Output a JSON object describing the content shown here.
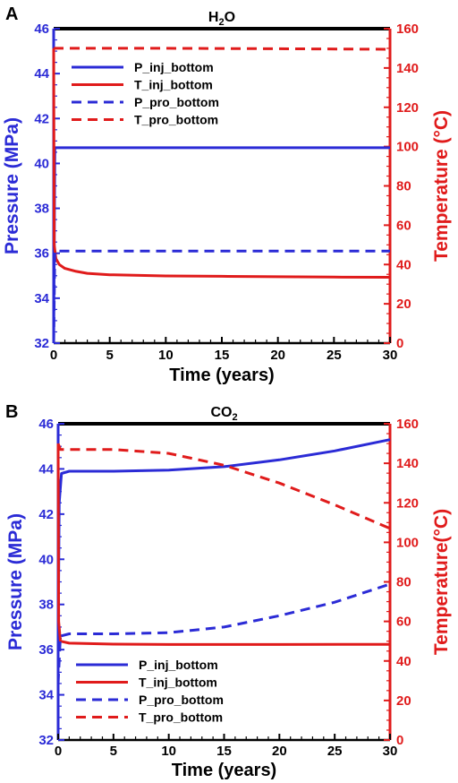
{
  "colors": {
    "blue": "#2b2bd6",
    "red": "#e01b1b",
    "frame": "#000000"
  },
  "chart_data": [
    {
      "type": "line",
      "panel_label": "A",
      "title": "H",
      "title_sub": "2",
      "title_tail": "O",
      "xlabel": "Time (years)",
      "ylabel_left": "Pressure (MPa)",
      "ylabel_right": "Temperature (°C)",
      "xlim": [
        0,
        30
      ],
      "ylim_left": [
        32,
        46
      ],
      "ylim_right": [
        0,
        160
      ],
      "x_ticks": [
        "0",
        "5",
        "10",
        "15",
        "20",
        "25",
        "30"
      ],
      "y_left_ticks": [
        "32",
        "34",
        "36",
        "38",
        "40",
        "42",
        "44",
        "46"
      ],
      "y_right_ticks": [
        "0",
        "20",
        "40",
        "60",
        "80",
        "100",
        "120",
        "140",
        "160"
      ],
      "legend_position": "top-left",
      "grid": false,
      "series": [
        {
          "name": "P_inj_bottom",
          "axis": "left",
          "dash": false,
          "color": "#2b2bd6",
          "points": [
            [
              0,
              32.0
            ],
            [
              0.1,
              40.7
            ],
            [
              30,
              40.7
            ]
          ]
        },
        {
          "name": "T_inj_bottom",
          "axis": "right",
          "dash": false,
          "color": "#e01b1b",
          "points": [
            [
              0,
              150
            ],
            [
              0.05,
              50
            ],
            [
              0.2,
              43
            ],
            [
              0.5,
              40
            ],
            [
              1,
              38
            ],
            [
              2,
              36.5
            ],
            [
              3,
              35.5
            ],
            [
              5,
              34.8
            ],
            [
              10,
              34.2
            ],
            [
              15,
              34.0
            ],
            [
              20,
              33.8
            ],
            [
              25,
              33.6
            ],
            [
              30,
              33.5
            ]
          ]
        },
        {
          "name": "P_pro_bottom",
          "axis": "left",
          "dash": true,
          "color": "#2b2bd6",
          "points": [
            [
              0,
              32.0
            ],
            [
              0.1,
              36.1
            ],
            [
              30,
              36.1
            ]
          ]
        },
        {
          "name": "T_pro_bottom",
          "axis": "right",
          "dash": true,
          "color": "#e01b1b",
          "points": [
            [
              0,
              150
            ],
            [
              10,
              150
            ],
            [
              20,
              149.8
            ],
            [
              30,
              149.5
            ]
          ]
        }
      ]
    },
    {
      "type": "line",
      "panel_label": "B",
      "title": "CO",
      "title_sub": "2",
      "title_tail": "",
      "xlabel": "Time (years)",
      "ylabel_left": "Pressure (MPa)",
      "ylabel_right": "Temperature(°C)",
      "xlim": [
        0,
        30
      ],
      "ylim_left": [
        32,
        46
      ],
      "ylim_right": [
        0,
        160
      ],
      "x_ticks": [
        "0",
        "5",
        "10",
        "15",
        "20",
        "25",
        "30"
      ],
      "y_left_ticks": [
        "32",
        "34",
        "36",
        "38",
        "40",
        "42",
        "44",
        "46"
      ],
      "y_right_ticks": [
        "0",
        "20",
        "40",
        "60",
        "80",
        "100",
        "120",
        "140",
        "160"
      ],
      "legend_position": "bottom-left",
      "grid": false,
      "series": [
        {
          "name": "P_inj_bottom",
          "axis": "left",
          "dash": false,
          "color": "#2b2bd6",
          "points": [
            [
              0,
              36.0
            ],
            [
              0.1,
              42.5
            ],
            [
              0.3,
              43.8
            ],
            [
              1,
              43.9
            ],
            [
              5,
              43.9
            ],
            [
              10,
              43.95
            ],
            [
              15,
              44.1
            ],
            [
              20,
              44.4
            ],
            [
              25,
              44.8
            ],
            [
              30,
              45.3
            ]
          ]
        },
        {
          "name": "T_inj_bottom",
          "axis": "right",
          "dash": false,
          "color": "#e01b1b",
          "points": [
            [
              0,
              150
            ],
            [
              0.05,
              60
            ],
            [
              0.2,
              50
            ],
            [
              1,
              49
            ],
            [
              5,
              48.5
            ],
            [
              10,
              48.3
            ],
            [
              20,
              48.3
            ],
            [
              30,
              48.4
            ]
          ]
        },
        {
          "name": "P_pro_bottom",
          "axis": "left",
          "dash": true,
          "color": "#2b2bd6",
          "points": [
            [
              0,
              34.5
            ],
            [
              0.2,
              36.6
            ],
            [
              1,
              36.7
            ],
            [
              5,
              36.7
            ],
            [
              10,
              36.75
            ],
            [
              15,
              37.0
            ],
            [
              20,
              37.5
            ],
            [
              25,
              38.1
            ],
            [
              30,
              38.9
            ]
          ]
        },
        {
          "name": "T_pro_bottom",
          "axis": "right",
          "dash": true,
          "color": "#e01b1b",
          "points": [
            [
              0,
              150
            ],
            [
              0.2,
              147
            ],
            [
              5,
              147
            ],
            [
              10,
              145
            ],
            [
              15,
              139
            ],
            [
              20,
              130
            ],
            [
              25,
              119
            ],
            [
              30,
              107
            ]
          ]
        }
      ]
    }
  ]
}
